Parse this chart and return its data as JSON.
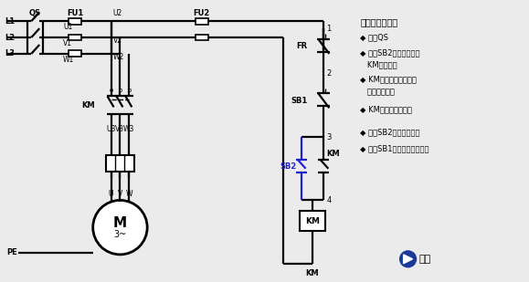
{
  "bg_color": "#ebebeb",
  "line_color": "#000000",
  "blue_color": "#2222cc",
  "title_text": "工作流程分析：",
  "bullets": [
    "◆ 闭合QS",
    "◆ 按下SB2控制电路闭合\n   KM线圈得电",
    "◆ KM主触点闭合主线路\n   接通电机启动",
    "◆ KM辅触点闭合自锁",
    "◆ 松开SB2电机保持转动",
    "◆ 按下SB1电路失电电机停转"
  ],
  "start_text": "开始",
  "figsize": [
    5.79,
    3.09
  ],
  "dpi": 100,
  "lw": 1.6
}
